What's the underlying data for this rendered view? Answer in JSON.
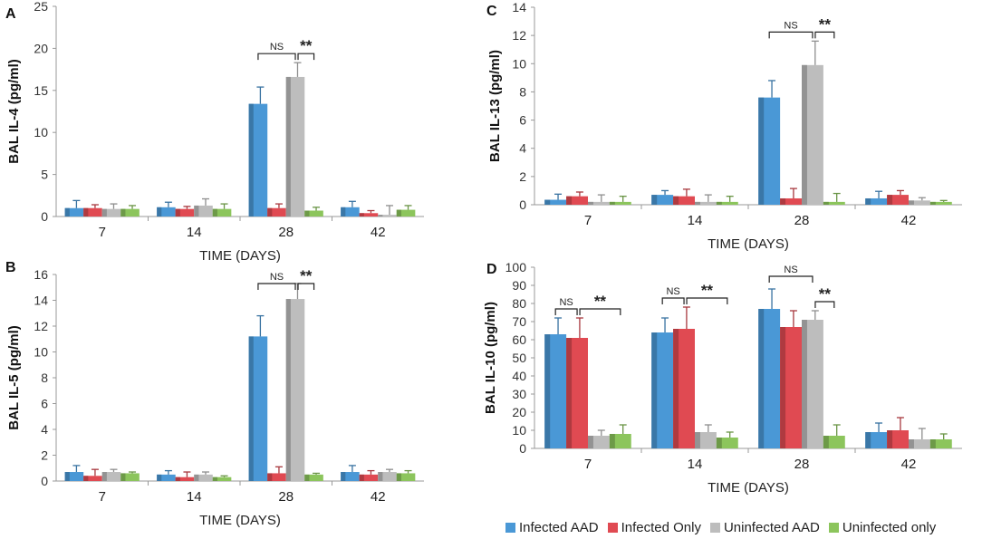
{
  "colors": {
    "infected_aad": "#4a98d6",
    "infected_only": "#e04a52",
    "uninfected_aad": "#bdbdbd",
    "uninfected_only": "#8cc55c",
    "axis": "#999999",
    "grid": "#d9d9d9"
  },
  "legend": [
    "Infected AAD",
    "Infected Only",
    "Uninfected AAD",
    "Uninfected only"
  ],
  "chart_data": [
    {
      "type": "bar",
      "panel": "A",
      "title": "",
      "xlabel": "TIME (DAYS)",
      "ylabel": "BAL IL-4 (pg/ml)",
      "ylim": [
        0,
        25
      ],
      "yticks": [
        0,
        5,
        10,
        15,
        20,
        25
      ],
      "categories": [
        "7",
        "14",
        "28",
        "42"
      ],
      "series": [
        {
          "name": "Infected AAD",
          "values": [
            1.0,
            1.1,
            13.4,
            1.1
          ],
          "errors": [
            0.9,
            0.6,
            2.0,
            0.7
          ]
        },
        {
          "name": "Infected Only",
          "values": [
            1.0,
            0.9,
            1.0,
            0.4
          ],
          "errors": [
            0.4,
            0.3,
            0.5,
            0.3
          ]
        },
        {
          "name": "Uninfected AAD",
          "values": [
            0.9,
            1.3,
            16.6,
            0.2
          ],
          "errors": [
            0.6,
            0.8,
            1.7,
            1.1
          ]
        },
        {
          "name": "Uninfected only",
          "values": [
            0.9,
            0.9,
            0.7,
            0.8
          ],
          "errors": [
            0.4,
            0.6,
            0.4,
            0.5
          ]
        }
      ],
      "annotations": [
        {
          "category": "28",
          "from_series": 0,
          "to_series": 2,
          "text": "NS"
        },
        {
          "category": "28",
          "from_series": 2,
          "to_series": 3,
          "text": "**"
        }
      ]
    },
    {
      "type": "bar",
      "panel": "B",
      "title": "",
      "xlabel": "TIME (DAYS)",
      "ylabel": "BAL  IL-5 (pg/ml)",
      "ylim": [
        0,
        16
      ],
      "yticks": [
        0,
        2,
        4,
        6,
        8,
        10,
        12,
        14,
        16
      ],
      "categories": [
        "7",
        "14",
        "28",
        "42"
      ],
      "series": [
        {
          "name": "Infected AAD",
          "values": [
            0.7,
            0.5,
            11.2,
            0.7
          ],
          "errors": [
            0.5,
            0.3,
            1.6,
            0.5
          ]
        },
        {
          "name": "Infected Only",
          "values": [
            0.4,
            0.3,
            0.6,
            0.5
          ],
          "errors": [
            0.5,
            0.4,
            0.5,
            0.3
          ]
        },
        {
          "name": "Uninfected AAD",
          "values": [
            0.7,
            0.5,
            14.1,
            0.7
          ],
          "errors": [
            0.2,
            0.2,
            1.2,
            0.2
          ]
        },
        {
          "name": "Uninfected only",
          "values": [
            0.6,
            0.3,
            0.5,
            0.6
          ],
          "errors": [
            0.1,
            0.1,
            0.1,
            0.2
          ]
        }
      ],
      "annotations": [
        {
          "category": "28",
          "from_series": 0,
          "to_series": 2,
          "text": "NS"
        },
        {
          "category": "28",
          "from_series": 2,
          "to_series": 3,
          "text": "**"
        }
      ]
    },
    {
      "type": "bar",
      "panel": "C",
      "title": "",
      "xlabel": "TIME (DAYS)",
      "ylabel": "BAL IL-13 (pg/ml)",
      "ylim": [
        0,
        14
      ],
      "yticks": [
        0,
        2,
        4,
        6,
        8,
        10,
        12,
        14
      ],
      "categories": [
        "7",
        "14",
        "28",
        "42"
      ],
      "series": [
        {
          "name": "Infected AAD",
          "values": [
            0.35,
            0.7,
            7.6,
            0.45
          ],
          "errors": [
            0.4,
            0.3,
            1.2,
            0.5
          ]
        },
        {
          "name": "Infected Only",
          "values": [
            0.6,
            0.6,
            0.45,
            0.7
          ],
          "errors": [
            0.3,
            0.5,
            0.7,
            0.3
          ]
        },
        {
          "name": "Uninfected AAD",
          "values": [
            0.2,
            0.2,
            9.9,
            0.3
          ],
          "errors": [
            0.5,
            0.5,
            1.7,
            0.2
          ]
        },
        {
          "name": "Uninfected only",
          "values": [
            0.2,
            0.2,
            0.2,
            0.2
          ],
          "errors": [
            0.4,
            0.4,
            0.6,
            0.1
          ]
        }
      ],
      "annotations": [
        {
          "category": "28",
          "from_series": 0,
          "to_series": 2,
          "text": "NS"
        },
        {
          "category": "28",
          "from_series": 2,
          "to_series": 3,
          "text": "**"
        }
      ]
    },
    {
      "type": "bar",
      "panel": "D",
      "title": "",
      "xlabel": "TIME (DAYS)",
      "ylabel": "BAL  IL-10 (pg/ml)",
      "ylim": [
        0,
        100
      ],
      "yticks": [
        0,
        10,
        20,
        30,
        40,
        50,
        60,
        70,
        80,
        90,
        100
      ],
      "categories": [
        "7",
        "14",
        "28",
        "42"
      ],
      "series": [
        {
          "name": "Infected AAD",
          "values": [
            63,
            64,
            77,
            9
          ],
          "errors": [
            9,
            8,
            11,
            5
          ]
        },
        {
          "name": "Infected Only",
          "values": [
            61,
            66,
            67,
            10
          ],
          "errors": [
            11,
            12,
            9,
            7
          ]
        },
        {
          "name": "Uninfected AAD",
          "values": [
            7,
            9,
            71,
            5
          ],
          "errors": [
            3,
            4,
            5,
            6
          ]
        },
        {
          "name": "Uninfected only",
          "values": [
            8,
            6,
            7,
            5
          ],
          "errors": [
            5,
            3,
            6,
            3
          ]
        }
      ],
      "annotations": [
        {
          "category": "7",
          "from_series": 0,
          "to_series": 1,
          "text": "NS"
        },
        {
          "category": "7",
          "from_series": 1,
          "to_series": 3,
          "text": "**"
        },
        {
          "category": "14",
          "from_series": 0,
          "to_series": 1,
          "text": "NS"
        },
        {
          "category": "14",
          "from_series": 1,
          "to_series": 3,
          "text": "**"
        },
        {
          "category": "28",
          "from_series": 0,
          "to_series": 2,
          "text": "NS"
        },
        {
          "category": "28",
          "from_series": 2,
          "to_series": 3,
          "text": "**"
        }
      ]
    }
  ]
}
